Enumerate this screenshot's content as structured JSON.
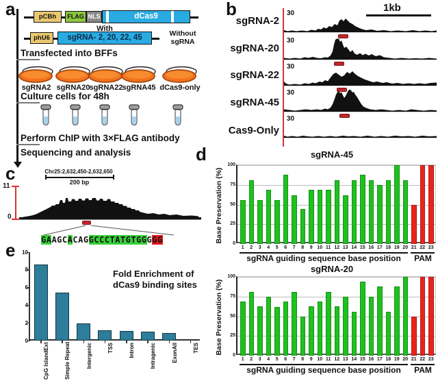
{
  "colors": {
    "guide_bar": "#1fc11f",
    "pam_bar": "#e8241c",
    "enrichment_bar": "#2e7d9a",
    "dish_orange": "#f4711d",
    "construct_blue": "#29abe2",
    "promoter_yellow": "#e9c76d",
    "flag_green": "#8cc63e",
    "nls_gray": "#8a8a8a",
    "marker_red": "#c1272d"
  },
  "panel_a": {
    "label": "a",
    "plasmid1": {
      "promoter": "pCBh",
      "flag": "FLAG",
      "nls": "NLS",
      "gene": "dCas9"
    },
    "with_label": "With",
    "plasmid2": {
      "promoter": "phU6",
      "insert": "sgRNA- 2, 20, 22, 45"
    },
    "without_label": "Without sgRNA",
    "step1": "Transfected into BFFs",
    "step2": "Culture cells for 48h",
    "step3": "Perform ChIP with 3×FLAG antibody",
    "step4": "Sequencing and analysis",
    "dishes": [
      "sgRNA2",
      "sgRNA20",
      "sgRNA22",
      "sgRNA45",
      "dCas9-only"
    ]
  },
  "panel_b": {
    "label": "b",
    "scale_label": "1kb",
    "track_scale": "30",
    "tracks": [
      "sgRNA-2",
      "sgRNA-20",
      "sgRNA-22",
      "sgRNA-45",
      "Cas9-Only"
    ]
  },
  "panel_c": {
    "label": "c",
    "locus": "Chr25:2,632,450-2,632,650",
    "scale_label": "200 bp",
    "ymax": "11",
    "ymin": "0",
    "sequence": [
      {
        "t": "GA",
        "s": "green"
      },
      {
        "t": "AGC",
        "s": "plain"
      },
      {
        "t": "A",
        "s": "green"
      },
      {
        "t": "CAG",
        "s": "plain"
      },
      {
        "t": "GCCCTATGTGG",
        "s": "green"
      },
      {
        "t": "G",
        "s": "plain"
      },
      {
        "t": "GG",
        "s": "red"
      }
    ]
  },
  "panel_d": {
    "label": "d"
  },
  "panel_e": {
    "label": "e",
    "annotation_line1": "Fold Enrichment of",
    "annotation_line2": "dCas9 binding sites"
  },
  "chart_data": [
    {
      "id": "sgRNA45_base_preservation",
      "type": "bar",
      "title": "sgRNA-45",
      "ylabel": "Base Preservation (%)",
      "xlabel": "sgRNA guiding sequence base position",
      "xlabel2": "PAM",
      "ylim": [
        0,
        100
      ],
      "yticks": [
        0,
        25,
        50,
        75,
        100
      ],
      "categories": [
        "1",
        "2",
        "3",
        "4",
        "5",
        "6",
        "7",
        "8",
        "9",
        "10",
        "11",
        "12",
        "13",
        "14",
        "15",
        "16",
        "17",
        "18",
        "19",
        "20",
        "21",
        "22",
        "23"
      ],
      "values": [
        56,
        81,
        56,
        69,
        56,
        88,
        62,
        44,
        69,
        69,
        69,
        81,
        62,
        81,
        88,
        81,
        75,
        81,
        100,
        81,
        50,
        100,
        100
      ],
      "pam_positions": [
        21,
        22,
        23
      ],
      "colors": {
        "guide": "#1fc11f",
        "pam": "#e8241c"
      },
      "grid": true
    },
    {
      "id": "sgRNA20_base_preservation",
      "type": "bar",
      "title": "sgRNA-20",
      "ylabel": "Base Preservation (%)",
      "xlabel": "sgRNA guiding sequence base position",
      "xlabel2": "PAM",
      "ylim": [
        0,
        100
      ],
      "yticks": [
        0,
        25,
        50,
        75,
        100
      ],
      "categories": [
        "1",
        "2",
        "3",
        "4",
        "5",
        "6",
        "7",
        "8",
        "9",
        "10",
        "11",
        "12",
        "13",
        "14",
        "15",
        "16",
        "17",
        "18",
        "19",
        "20",
        "21",
        "22",
        "23"
      ],
      "values": [
        69,
        81,
        63,
        75,
        62,
        69,
        81,
        50,
        63,
        69,
        81,
        63,
        75,
        56,
        94,
        75,
        88,
        56,
        88,
        100,
        50,
        100,
        100
      ],
      "pam_positions": [
        21,
        22,
        23
      ],
      "colors": {
        "guide": "#1fc11f",
        "pam": "#e8241c"
      },
      "grid": true
    },
    {
      "id": "fold_enrichment_dcas9_binding_sites",
      "type": "bar",
      "title": "Fold Enrichment of dCas9 binding sites",
      "ylim": [
        0,
        10
      ],
      "yticks": [
        0,
        2,
        4,
        6,
        8,
        10
      ],
      "categories": [
        "CpG IslandExt",
        "Simple Repeat",
        "Intergenic",
        "TSS",
        "Intron",
        "Intragenic",
        "ExonAll",
        "TES"
      ],
      "values": [
        8.6,
        5.4,
        1.9,
        1.15,
        1.1,
        1.0,
        0.85,
        0
      ],
      "bar_color": "#2e7d9a",
      "grid": false
    }
  ]
}
